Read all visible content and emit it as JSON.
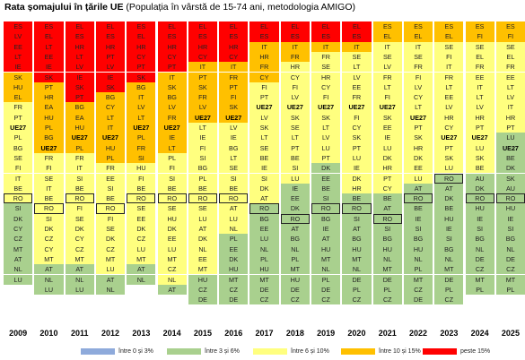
{
  "title_bold": "Rata șomajului în țările UE",
  "title_rest": " (Populația în vârstă de 15-74 ani, metodologia AMIGO)",
  "colors": {
    "b0": "#8eaadb",
    "b1": "#a9d08e",
    "b2": "#ffff7f",
    "b3": "#ffc000",
    "b4": "#ff0000"
  },
  "chart_data": {
    "type": "table",
    "title": "Rata șomajului în țările UE",
    "subtitle": "(Populația în vârstă de 15-74 ani, metodologia AMIGO)",
    "columns": [
      {
        "year": "2009",
        "countries": [
          "ES",
          "LV",
          "EE",
          "LT",
          "IE",
          "SK",
          "HU",
          "EL",
          "FR",
          "PT",
          "UE27",
          "PL",
          "BG",
          "SE",
          "FI",
          "IT",
          "BE",
          "RO",
          "SI",
          "DK",
          "CY",
          "CZ",
          "MT",
          "AT",
          "NL",
          "LU"
        ],
        "bands": [
          4,
          4,
          4,
          4,
          4,
          3,
          3,
          3,
          2,
          2,
          2,
          2,
          2,
          2,
          2,
          2,
          2,
          2,
          1,
          1,
          1,
          1,
          1,
          1,
          1,
          1
        ]
      },
      {
        "year": "2010",
        "countries": [
          "ES",
          "EL",
          "LT",
          "EE",
          "IE",
          "SK",
          "PT",
          "HR",
          "EA",
          "HU",
          "PL",
          "BG",
          "UE27",
          "FR",
          "FI",
          "SE",
          "IT",
          "BE",
          "RO",
          "SI",
          "DK",
          "CZ",
          "CY",
          "MT",
          "AT",
          "NL",
          "LU"
        ],
        "bands": [
          4,
          4,
          4,
          4,
          4,
          4,
          3,
          3,
          3,
          3,
          3,
          3,
          3,
          2,
          2,
          2,
          2,
          2,
          2,
          2,
          2,
          2,
          2,
          2,
          1,
          1,
          1
        ]
      },
      {
        "year": "2011",
        "countries": [
          "EL",
          "ES",
          "HR",
          "LT",
          "LV",
          "IE",
          "SK",
          "PT",
          "BG",
          "EA",
          "HU",
          "UE27",
          "PL",
          "FR",
          "IT",
          "SI",
          "BE",
          "RO",
          "FI",
          "SE",
          "DK",
          "CY",
          "CZ",
          "MT",
          "AT",
          "NL",
          "LU"
        ],
        "bands": [
          4,
          4,
          4,
          4,
          4,
          4,
          4,
          4,
          3,
          3,
          3,
          3,
          3,
          2,
          2,
          2,
          2,
          2,
          2,
          2,
          2,
          2,
          2,
          2,
          1,
          1,
          1
        ]
      },
      {
        "year": "2012",
        "countries": [
          "EL",
          "ES",
          "HR",
          "PT",
          "LV",
          "IE",
          "SK",
          "BG",
          "CY",
          "LT",
          "IT",
          "UE27",
          "HU",
          "PL",
          "FR",
          "EE",
          "SI",
          "BE",
          "RO",
          "FI",
          "SE",
          "DK",
          "CZ",
          "MT",
          "LU",
          "AT",
          "NL"
        ],
        "bands": [
          4,
          4,
          4,
          4,
          4,
          4,
          4,
          3,
          3,
          3,
          3,
          3,
          3,
          3,
          2,
          2,
          2,
          2,
          2,
          2,
          2,
          2,
          2,
          2,
          2,
          1,
          1
        ]
      },
      {
        "year": "2013",
        "countries": [
          "ES",
          "EL",
          "HR",
          "CY",
          "PT",
          "SK",
          "BG",
          "IT",
          "LV",
          "LT",
          "UE27",
          "PL",
          "FR",
          "SI",
          "HU",
          "FI",
          "BE",
          "RO",
          "SE",
          "EE",
          "DK",
          "CZ",
          "LU",
          "MT",
          "AT",
          "NL"
        ],
        "bands": [
          4,
          4,
          4,
          4,
          4,
          4,
          3,
          3,
          3,
          3,
          3,
          3,
          3,
          3,
          2,
          2,
          2,
          2,
          2,
          2,
          2,
          2,
          2,
          2,
          1,
          1
        ]
      },
      {
        "year": "2014",
        "countries": [
          "EL",
          "ES",
          "HR",
          "CY",
          "PT",
          "IT",
          "SK",
          "BG",
          "LV",
          "FR",
          "UE27",
          "IE",
          "LT",
          "PL",
          "FI",
          "SI",
          "BE",
          "RO",
          "SE",
          "HU",
          "DK",
          "EE",
          "LU",
          "MT",
          "CZ",
          "NL",
          "AT"
        ],
        "bands": [
          4,
          4,
          4,
          4,
          4,
          3,
          3,
          3,
          3,
          3,
          3,
          3,
          3,
          2,
          2,
          2,
          2,
          2,
          2,
          2,
          2,
          2,
          2,
          2,
          2,
          2,
          1
        ]
      },
      {
        "year": "2015",
        "countries": [
          "EL",
          "ES",
          "HR",
          "CY",
          "IT",
          "PT",
          "SK",
          "FR",
          "LV",
          "UE27",
          "LT",
          "IE",
          "FI",
          "SI",
          "BG",
          "PL",
          "BE",
          "RO",
          "SE",
          "LU",
          "AT",
          "DK",
          "NL",
          "EE",
          "MT",
          "HU",
          "CZ",
          "DE"
        ],
        "bands": [
          4,
          4,
          4,
          4,
          3,
          3,
          3,
          3,
          3,
          3,
          2,
          2,
          2,
          2,
          2,
          2,
          2,
          2,
          2,
          2,
          2,
          2,
          2,
          2,
          2,
          1,
          1,
          1
        ]
      },
      {
        "year": "2016",
        "countries": [
          "EL",
          "ES",
          "HR",
          "CY",
          "IT",
          "FR",
          "PT",
          "FI",
          "SK",
          "UE27",
          "LV",
          "IE",
          "BG",
          "LT",
          "SE",
          "SI",
          "BE",
          "RO",
          "AT",
          "LU",
          "NL",
          "PL",
          "EE",
          "DK",
          "HU",
          "MT",
          "CZ",
          "DE"
        ],
        "bands": [
          4,
          4,
          4,
          4,
          3,
          3,
          3,
          3,
          3,
          3,
          2,
          2,
          2,
          2,
          2,
          2,
          2,
          2,
          2,
          2,
          2,
          1,
          1,
          1,
          1,
          1,
          1,
          1
        ]
      },
      {
        "year": "2017",
        "countries": [
          "EL",
          "ES",
          "IT",
          "HR",
          "FR",
          "CY",
          "FI",
          "PT",
          "UE27",
          "LV",
          "SK",
          "LT",
          "SE",
          "BE",
          "IE",
          "SI",
          "DK",
          "AT",
          "RO",
          "BG",
          "EE",
          "LU",
          "NL",
          "PL",
          "HU",
          "MT",
          "DE",
          "CZ"
        ],
        "bands": [
          4,
          4,
          3,
          3,
          3,
          3,
          2,
          2,
          2,
          2,
          2,
          2,
          2,
          2,
          2,
          2,
          2,
          2,
          1,
          1,
          1,
          1,
          1,
          1,
          1,
          1,
          1,
          1
        ]
      },
      {
        "year": "2018",
        "countries": [
          "EL",
          "ES",
          "IT",
          "FR",
          "HR",
          "CY",
          "FI",
          "LV",
          "UE27",
          "SK",
          "SE",
          "LT",
          "PT",
          "BE",
          "SI",
          "LU",
          "IE",
          "EE",
          "DK",
          "RO",
          "AT",
          "BG",
          "NL",
          "PL",
          "MT",
          "HU",
          "DE",
          "CZ"
        ],
        "bands": [
          4,
          4,
          3,
          3,
          2,
          2,
          2,
          2,
          2,
          2,
          2,
          2,
          2,
          2,
          2,
          2,
          1,
          1,
          1,
          1,
          1,
          1,
          1,
          1,
          1,
          1,
          1,
          1
        ]
      },
      {
        "year": "2019",
        "countries": [
          "EL",
          "ES",
          "IT",
          "FR",
          "SE",
          "HR",
          "CY",
          "FI",
          "UE27",
          "SK",
          "LT",
          "LV",
          "LU",
          "PT",
          "DK",
          "EE",
          "BE",
          "SI",
          "RO",
          "BG",
          "IE",
          "AT",
          "HU",
          "MT",
          "NL",
          "PL",
          "DE",
          "CZ"
        ],
        "bands": [
          4,
          4,
          3,
          2,
          2,
          2,
          2,
          2,
          2,
          2,
          2,
          2,
          2,
          2,
          1,
          1,
          1,
          1,
          1,
          1,
          1,
          1,
          1,
          1,
          1,
          1,
          1,
          1
        ]
      },
      {
        "year": "2020",
        "countries": [
          "EL",
          "ES",
          "IT",
          "SE",
          "LT",
          "LV",
          "EE",
          "FR",
          "UE27",
          "FI",
          "CY",
          "SK",
          "PT",
          "LU",
          "IE",
          "DK",
          "HR",
          "BE",
          "RO",
          "SI",
          "AT",
          "BG",
          "HU",
          "MT",
          "NL",
          "DE",
          "PL",
          "CZ"
        ],
        "bands": [
          4,
          4,
          3,
          2,
          2,
          2,
          2,
          2,
          2,
          2,
          2,
          2,
          2,
          2,
          2,
          2,
          2,
          1,
          1,
          1,
          1,
          1,
          1,
          1,
          1,
          1,
          1,
          1
        ]
      },
      {
        "year": "2021",
        "countries": [
          "ES",
          "EL",
          "IT",
          "SE",
          "LV",
          "FR",
          "LT",
          "FI",
          "UE27",
          "SK",
          "EE",
          "IE",
          "LU",
          "DK",
          "HR",
          "PT",
          "CY",
          "BE",
          "AT",
          "RO",
          "SI",
          "BG",
          "HU",
          "NL",
          "MT",
          "DE",
          "PL",
          "CZ"
        ],
        "bands": [
          3,
          3,
          2,
          2,
          2,
          2,
          2,
          2,
          2,
          2,
          2,
          2,
          2,
          2,
          2,
          2,
          2,
          1,
          1,
          1,
          1,
          1,
          1,
          1,
          1,
          1,
          1,
          1
        ]
      },
      {
        "year": "2022",
        "countries": [
          "ES",
          "EL",
          "IT",
          "SE",
          "FR",
          "FI",
          "LV",
          "CY",
          "LT",
          "UE27",
          "PT",
          "SK",
          "HR",
          "DK",
          "EE",
          "LU",
          "AT",
          "RO",
          "BE",
          "IE",
          "SI",
          "BG",
          "HU",
          "NL",
          "PL",
          "MT",
          "CZ",
          "DE"
        ],
        "bands": [
          3,
          3,
          2,
          2,
          2,
          2,
          2,
          2,
          2,
          2,
          2,
          2,
          2,
          2,
          2,
          2,
          1,
          1,
          1,
          1,
          1,
          1,
          1,
          1,
          1,
          1,
          1,
          1
        ]
      },
      {
        "year": "2023",
        "countries": [
          "ES",
          "EL",
          "SE",
          "FI",
          "IT",
          "FR",
          "LT",
          "EE",
          "LV",
          "HR",
          "CY",
          "UE27",
          "PT",
          "SK",
          "LU",
          "RO",
          "AT",
          "DK",
          "BE",
          "HU",
          "IE",
          "SI",
          "BG",
          "NL",
          "MT",
          "DE",
          "PL",
          "CZ"
        ],
        "bands": [
          3,
          3,
          2,
          2,
          2,
          2,
          2,
          2,
          2,
          2,
          2,
          2,
          2,
          2,
          2,
          1,
          1,
          1,
          1,
          1,
          1,
          1,
          1,
          1,
          1,
          1,
          1,
          1
        ]
      },
      {
        "year": "2024",
        "countries": [
          "ES",
          "FI",
          "SE",
          "EL",
          "FR",
          "EE",
          "IT",
          "LT",
          "LV",
          "HR",
          "PT",
          "UE27",
          "LU",
          "SK",
          "BE",
          "AU",
          "DK",
          "RO",
          "HU",
          "IE",
          "SI",
          "BG",
          "NL",
          "DE",
          "CZ",
          "MT",
          "PL"
        ],
        "bands": [
          3,
          3,
          2,
          2,
          2,
          2,
          2,
          2,
          2,
          2,
          2,
          2,
          2,
          2,
          2,
          1,
          1,
          1,
          1,
          1,
          1,
          1,
          1,
          1,
          1,
          1,
          1
        ]
      },
      {
        "year": "2025",
        "countries": [
          "ES",
          "FI",
          "SE",
          "EL",
          "FR",
          "EE",
          "LT",
          "LV",
          "IT",
          "HR",
          "PT",
          "LU",
          "UE27",
          "BE",
          "DK",
          "SK",
          "AU",
          "RO",
          "HU",
          "IE",
          "SI",
          "BG",
          "NL",
          "DE",
          "CZ",
          "MT",
          "PL"
        ],
        "bands": [
          3,
          3,
          2,
          2,
          2,
          2,
          2,
          2,
          2,
          2,
          2,
          1,
          1,
          1,
          1,
          1,
          1,
          1,
          1,
          1,
          1,
          1,
          1,
          1,
          1,
          1,
          1
        ]
      }
    ],
    "legend": [
      {
        "label": "între 0 și 3%",
        "color": "#8eaadb"
      },
      {
        "label": "între 3 și 6%",
        "color": "#a9d08e"
      },
      {
        "label": "între 6 și 10%",
        "color": "#ffff7f"
      },
      {
        "label": "între 10 și 15%",
        "color": "#ffc000"
      },
      {
        "label": "peste 15%",
        "color": "#ff0000"
      }
    ],
    "legend_position": "bottom",
    "highlighted": "RO",
    "aggregate": "UE27"
  }
}
